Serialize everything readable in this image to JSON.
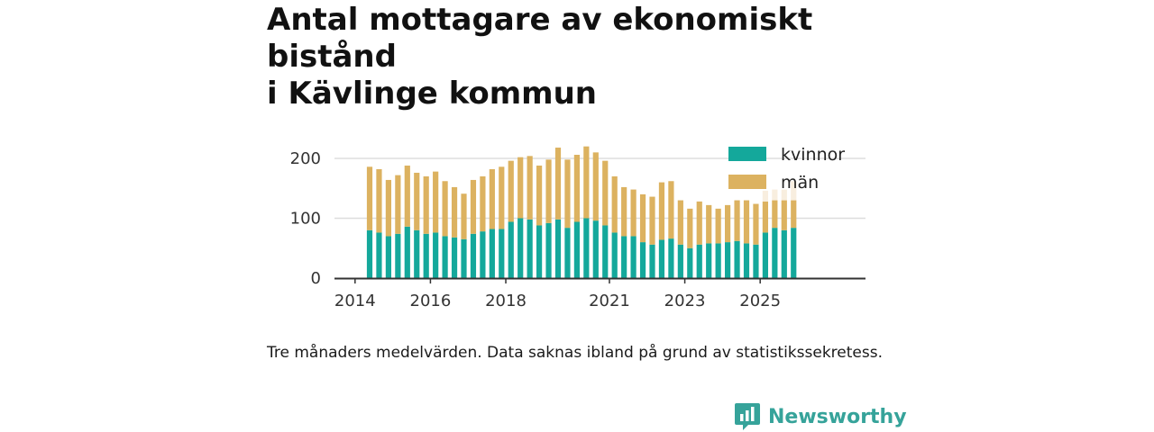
{
  "title": {
    "line1": "Antal mottagare av ekonomiskt bistånd",
    "line2": "i Kävlinge kommun"
  },
  "caption": "Tre månaders medelvärden. Data saknas ibland på grund av statistikssekretess.",
  "brand": {
    "name": "Newsworthy",
    "icon": "newsworthy-logo-icon"
  },
  "colors": {
    "kvinnor": "#14a89b",
    "man": "#dcb260",
    "faded": "#f8eedf",
    "grid": "#dddddd",
    "axis": "#333333",
    "brand": "#36a39a"
  },
  "chart_data": {
    "type": "bar",
    "stacked": true,
    "title": "Antal mottagare av ekonomiskt bistånd i Kävlinge kommun",
    "xlabel": "",
    "ylabel": "",
    "ylim": [
      0,
      220
    ],
    "yticks": [
      0,
      100,
      200
    ],
    "xticks": [
      {
        "label": "2014",
        "index": 0
      },
      {
        "label": "2016",
        "index": 8
      },
      {
        "label": "2018",
        "index": 16
      },
      {
        "label": "2021",
        "index": 27
      },
      {
        "label": "2023",
        "index": 35
      },
      {
        "label": "2025",
        "index": 43
      }
    ],
    "x_start_index": -1.5,
    "x_end_index": 46.5,
    "legend": {
      "position": "top-right",
      "entries": [
        "kvinnor",
        "män"
      ]
    },
    "series": [
      {
        "name": "kvinnor",
        "color": "#14a89b",
        "values": [
          80,
          76,
          70,
          74,
          86,
          80,
          74,
          76,
          70,
          68,
          65,
          74,
          78,
          82,
          82,
          94,
          100,
          98,
          88,
          92,
          98,
          84,
          94,
          100,
          96,
          88,
          76,
          70,
          70,
          60,
          56,
          64,
          66,
          56,
          50,
          56,
          58,
          58,
          60,
          62,
          58,
          56,
          76,
          84,
          80,
          84
        ]
      },
      {
        "name": "män",
        "color": "#dcb260",
        "values": [
          106,
          106,
          94,
          98,
          102,
          96,
          96,
          102,
          92,
          84,
          76,
          90,
          92,
          100,
          104,
          102,
          102,
          106,
          100,
          106,
          120,
          114,
          112,
          120,
          114,
          108,
          94,
          82,
          78,
          80,
          80,
          96,
          96,
          74,
          66,
          72,
          64,
          58,
          62,
          68,
          72,
          68,
          52,
          46,
          50,
          46
        ]
      },
      {
        "name": "faded",
        "color": "#f8eedf",
        "values": [
          0,
          0,
          0,
          0,
          0,
          0,
          0,
          0,
          0,
          0,
          0,
          0,
          0,
          0,
          0,
          0,
          0,
          0,
          0,
          0,
          0,
          0,
          0,
          0,
          0,
          0,
          0,
          0,
          0,
          0,
          0,
          0,
          0,
          0,
          0,
          0,
          0,
          0,
          0,
          0,
          0,
          0,
          18,
          18,
          18,
          32
        ]
      }
    ]
  }
}
